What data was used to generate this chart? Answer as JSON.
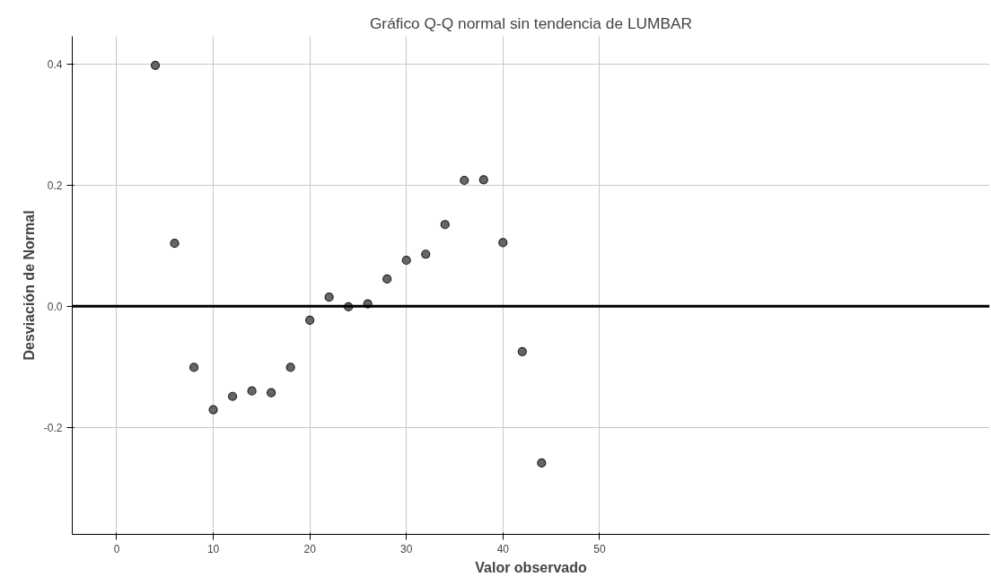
{
  "chart_data": {
    "type": "scatter",
    "title": "Gráfico Q-Q normal sin tendencia de LUMBAR",
    "xlabel": "Valor observado",
    "ylabel": "Desviación de Normal",
    "x": [
      4,
      6,
      8,
      10,
      12,
      14,
      16,
      18,
      20,
      22,
      24,
      26,
      28,
      30,
      32,
      34,
      36,
      38,
      40,
      42,
      44
    ],
    "series": [
      {
        "color": "#666666",
        "values": [
          0.398,
          0.104,
          -0.101,
          -0.171,
          -0.149,
          -0.14,
          -0.143,
          -0.101,
          -0.023,
          0.015,
          -0.001,
          0.004,
          0.045,
          0.076,
          0.086,
          0.135,
          0.208,
          0.209,
          0.105,
          -0.075,
          -0.259
        ]
      }
    ],
    "xlim": [
      -4.6,
      90.4
    ],
    "xticks": [
      0,
      10,
      20,
      30,
      40,
      50
    ],
    "ylim": [
      -0.377,
      0.446
    ],
    "yticks": [
      {
        "value": -0.2,
        "label": "-0.2"
      },
      {
        "value": 0.0,
        "label": "0.0"
      },
      {
        "value": 0.2,
        "label": "0.2"
      },
      {
        "value": 0.4,
        "label": "0.4"
      }
    ],
    "ref_lines": [
      {
        "axis": "y",
        "value": 0,
        "color": "#000000",
        "line_style": "solid"
      }
    ],
    "grid": true,
    "marker": "circle"
  }
}
